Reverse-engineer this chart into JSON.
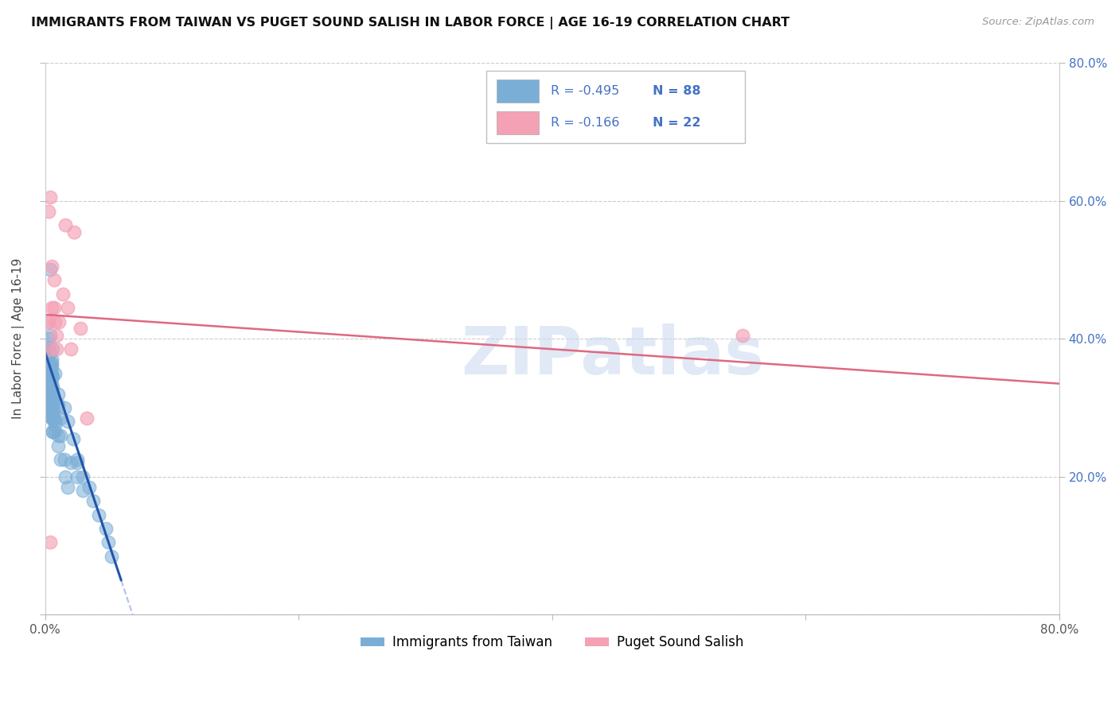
{
  "title": "IMMIGRANTS FROM TAIWAN VS PUGET SOUND SALISH IN LABOR FORCE | AGE 16-19 CORRELATION CHART",
  "source": "Source: ZipAtlas.com",
  "ylabel": "In Labor Force | Age 16-19",
  "xlim": [
    0.0,
    0.8
  ],
  "ylim": [
    0.0,
    0.8
  ],
  "watermark": "ZIPatlas",
  "legend_blue_R": "-0.495",
  "legend_blue_N": "88",
  "legend_pink_R": "-0.166",
  "legend_pink_N": "22",
  "blue_color": "#7aaed6",
  "pink_color": "#f4a0b5",
  "blue_line_color": "#2255aa",
  "pink_line_color": "#e06880",
  "blue_text_color": "#4472c4",
  "taiwan_x": [
    0.003,
    0.004,
    0.005,
    0.006,
    0.007,
    0.004,
    0.003,
    0.005,
    0.006,
    0.004,
    0.008,
    0.01,
    0.012,
    0.015,
    0.018,
    0.006,
    0.004,
    0.003,
    0.005,
    0.004,
    0.003,
    0.005,
    0.004,
    0.006,
    0.005,
    0.003,
    0.005,
    0.004,
    0.006,
    0.003,
    0.015,
    0.018,
    0.022,
    0.025,
    0.016,
    0.012,
    0.01,
    0.02,
    0.03,
    0.025,
    0.008,
    0.005,
    0.006,
    0.004,
    0.005,
    0.004,
    0.006,
    0.003,
    0.005,
    0.006,
    0.004,
    0.005,
    0.004,
    0.006,
    0.008,
    0.01,
    0.012,
    0.006,
    0.005,
    0.004,
    0.003,
    0.005,
    0.004,
    0.006,
    0.004,
    0.005,
    0.006,
    0.008,
    0.01,
    0.007,
    0.004,
    0.005,
    0.006,
    0.004,
    0.005,
    0.006,
    0.003,
    0.004,
    0.005,
    0.003,
    0.038,
    0.035,
    0.042,
    0.048,
    0.03,
    0.025,
    0.05,
    0.052
  ],
  "taiwan_y": [
    0.335,
    0.5,
    0.365,
    0.31,
    0.285,
    0.325,
    0.345,
    0.315,
    0.295,
    0.355,
    0.275,
    0.305,
    0.285,
    0.225,
    0.185,
    0.385,
    0.405,
    0.325,
    0.345,
    0.365,
    0.385,
    0.305,
    0.325,
    0.345,
    0.285,
    0.365,
    0.325,
    0.305,
    0.265,
    0.345,
    0.3,
    0.28,
    0.255,
    0.22,
    0.2,
    0.26,
    0.32,
    0.22,
    0.18,
    0.2,
    0.35,
    0.37,
    0.33,
    0.31,
    0.295,
    0.35,
    0.31,
    0.33,
    0.35,
    0.295,
    0.315,
    0.335,
    0.355,
    0.295,
    0.28,
    0.26,
    0.225,
    0.305,
    0.325,
    0.345,
    0.4,
    0.36,
    0.38,
    0.32,
    0.34,
    0.305,
    0.285,
    0.265,
    0.245,
    0.285,
    0.36,
    0.325,
    0.285,
    0.345,
    0.305,
    0.265,
    0.385,
    0.325,
    0.285,
    0.385,
    0.165,
    0.185,
    0.145,
    0.125,
    0.2,
    0.225,
    0.105,
    0.085
  ],
  "salish_x": [
    0.003,
    0.004,
    0.003,
    0.008,
    0.005,
    0.007,
    0.003,
    0.005,
    0.004,
    0.009,
    0.014,
    0.018,
    0.009,
    0.023,
    0.016,
    0.02,
    0.011,
    0.007,
    0.033,
    0.028,
    0.004,
    0.55
  ],
  "salish_y": [
    0.585,
    0.605,
    0.425,
    0.425,
    0.505,
    0.485,
    0.425,
    0.445,
    0.385,
    0.405,
    0.465,
    0.445,
    0.385,
    0.555,
    0.565,
    0.385,
    0.425,
    0.445,
    0.285,
    0.415,
    0.105,
    0.405
  ],
  "blue_regr_intercept": 0.38,
  "blue_regr_slope": -5.5,
  "blue_solid_xend": 0.06,
  "blue_dash_xend": 0.12,
  "pink_regr_intercept": 0.435,
  "pink_regr_slope": -0.125
}
